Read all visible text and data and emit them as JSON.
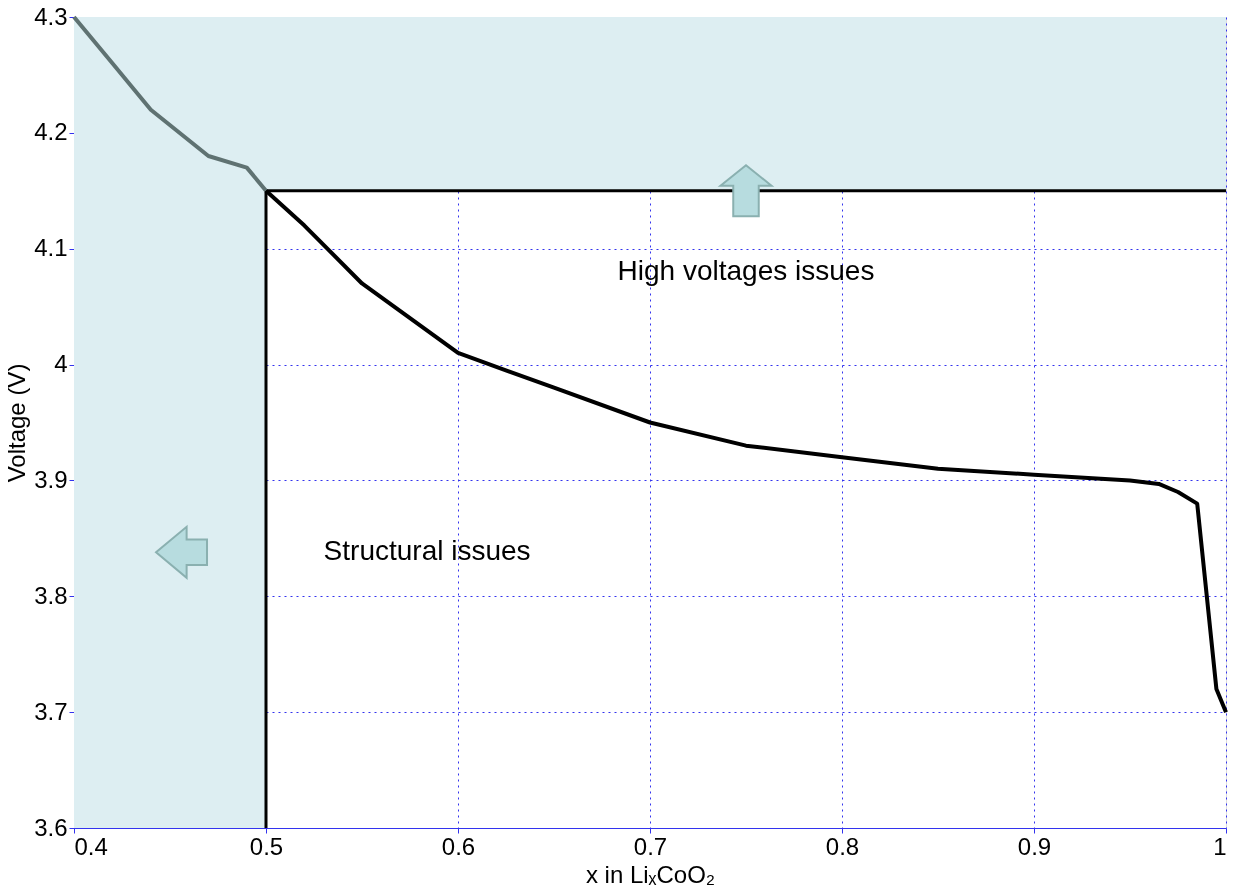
{
  "chart_data": {
    "type": "line",
    "xlabel": "x in LiₓCoO₂",
    "ylabel": "Voltage (V)",
    "xlim": [
      0.4,
      1
    ],
    "ylim": [
      3.6,
      4.3
    ],
    "xticks": [
      0.4,
      0.5,
      0.6,
      0.7,
      0.8,
      0.9,
      1
    ],
    "yticks": [
      3.6,
      3.7,
      3.8,
      3.9,
      4,
      4.1,
      4.2,
      4.3
    ],
    "grid": true,
    "line_style": "solid",
    "marker": "none",
    "series": [
      {
        "color": "#5f7272",
        "x": [
          0.4,
          0.42,
          0.44,
          0.47,
          0.49,
          0.5
        ],
        "values": [
          4.3,
          4.26,
          4.22,
          4.18,
          4.17,
          4.15
        ]
      },
      {
        "color": "#000000",
        "x": [
          0.5,
          0.52,
          0.55,
          0.6,
          0.65,
          0.7,
          0.75,
          0.8,
          0.85,
          0.9,
          0.95,
          0.965,
          0.975,
          0.985,
          0.99,
          0.995,
          1
        ],
        "values": [
          4.15,
          4.12,
          4.07,
          4.01,
          3.98,
          3.95,
          3.93,
          3.92,
          3.91,
          3.905,
          3.9,
          3.897,
          3.89,
          3.88,
          3.8,
          3.72,
          3.7
        ]
      }
    ],
    "bands": [
      {
        "axis": "y",
        "from": 4.15,
        "to": 4.3,
        "color": "#ddeef2"
      },
      {
        "axis": "x",
        "from": 0.4,
        "to": 0.5,
        "color": "#ddeef2"
      }
    ],
    "ref_lines": [
      {
        "axis": "x",
        "value": 0.5,
        "color": "#000000",
        "line_style": "solid"
      },
      {
        "axis": "y",
        "value": 4.15,
        "color": "#000000",
        "line_style": "solid"
      }
    ],
    "annotations": [
      "High voltages issues",
      "Structural issues"
    ]
  }
}
